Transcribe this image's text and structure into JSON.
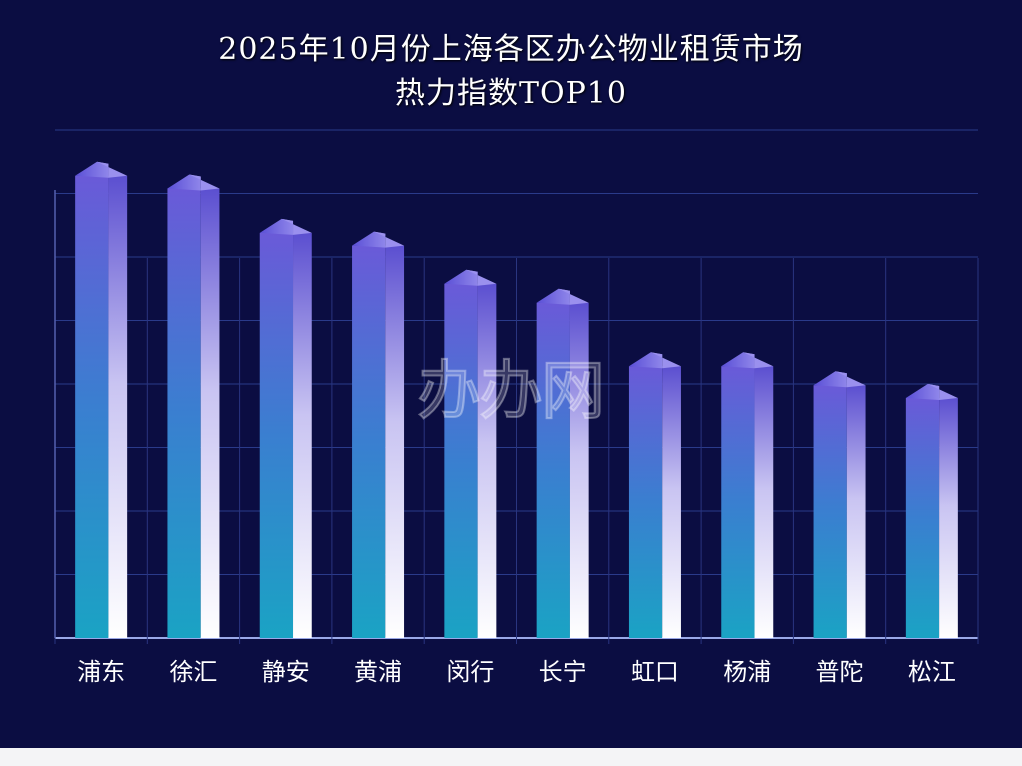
{
  "chart_data": {
    "type": "bar",
    "title": "2025年10月份上海各区办公物业租赁市场",
    "subtitle": "热力指数TOP10",
    "categories": [
      "浦东",
      "徐汇",
      "静安",
      "黄浦",
      "闵行",
      "长宁",
      "虹口",
      "杨浦",
      "普陀",
      "松江"
    ],
    "values": [
      7.5,
      7.3,
      6.6,
      6.4,
      5.8,
      5.5,
      4.5,
      4.5,
      4.2,
      4.0
    ],
    "ylim": [
      0,
      8
    ],
    "grid": true,
    "legend": "none",
    "colors": {
      "background": "#0b0d42",
      "bar_top": "#6a5ad8",
      "bar_bottom": "#1aa3c4",
      "bar_highlight": "#ffffff",
      "grid": "#2a3a8a"
    }
  },
  "watermark": "办办网"
}
